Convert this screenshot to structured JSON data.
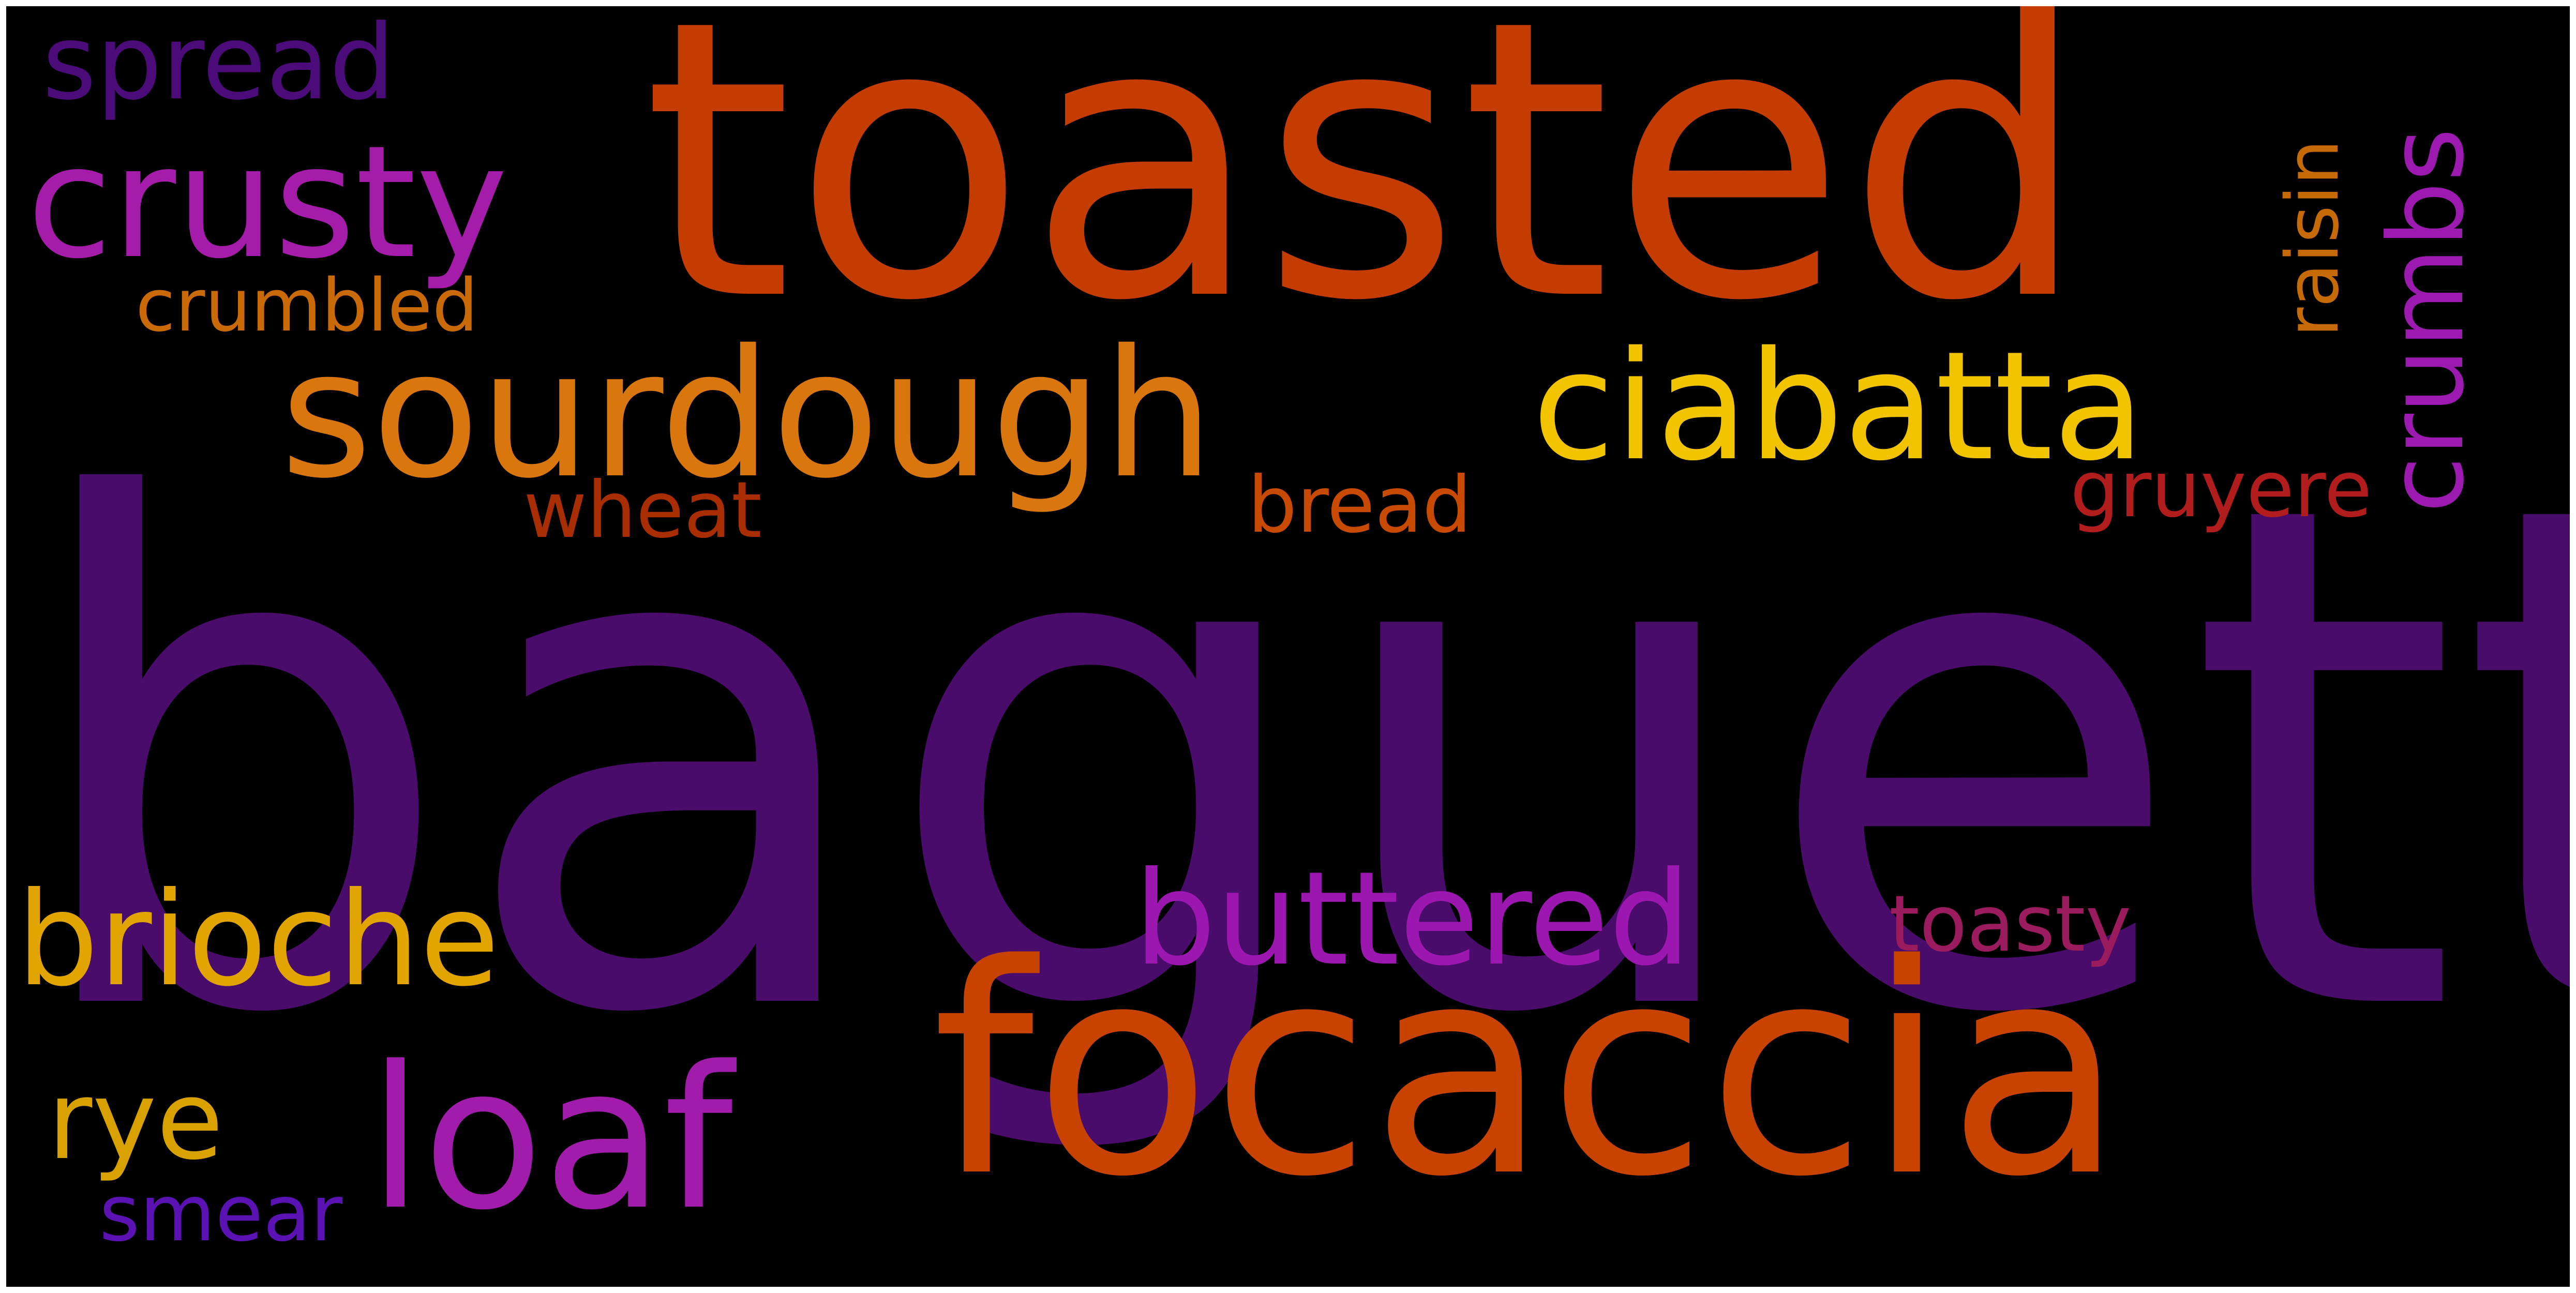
{
  "words": [
    {
      "text": "baguette",
      "color": "#4a0c6b"
    },
    {
      "text": "toasted",
      "color": "#c43c00"
    },
    {
      "text": "focaccia",
      "color": "#c94300"
    },
    {
      "text": "sourdough",
      "color": "#d9770e"
    },
    {
      "text": "ciabatta",
      "color": "#f2c400"
    },
    {
      "text": "crusty",
      "color": "#a61caa"
    },
    {
      "text": "buttered",
      "color": "#9c17b0"
    },
    {
      "text": "loaf",
      "color": "#a11cab"
    },
    {
      "text": "brioche",
      "color": "#e2a400"
    },
    {
      "text": "spread",
      "color": "#4b0c7a"
    },
    {
      "text": "crumbs",
      "color": "#9c1ab0"
    },
    {
      "text": "raisin",
      "color": "#c66a06"
    },
    {
      "text": "crumbled",
      "color": "#c96a06"
    },
    {
      "text": "gruyere",
      "color": "#b11d1d"
    },
    {
      "text": "wheat",
      "color": "#a82d00"
    },
    {
      "text": "bread",
      "color": "#c74a00"
    },
    {
      "text": "toasty",
      "color": "#9a1c5e"
    },
    {
      "text": "rye",
      "color": "#d9a100"
    },
    {
      "text": "smear",
      "color": "#5a12b3"
    }
  ]
}
